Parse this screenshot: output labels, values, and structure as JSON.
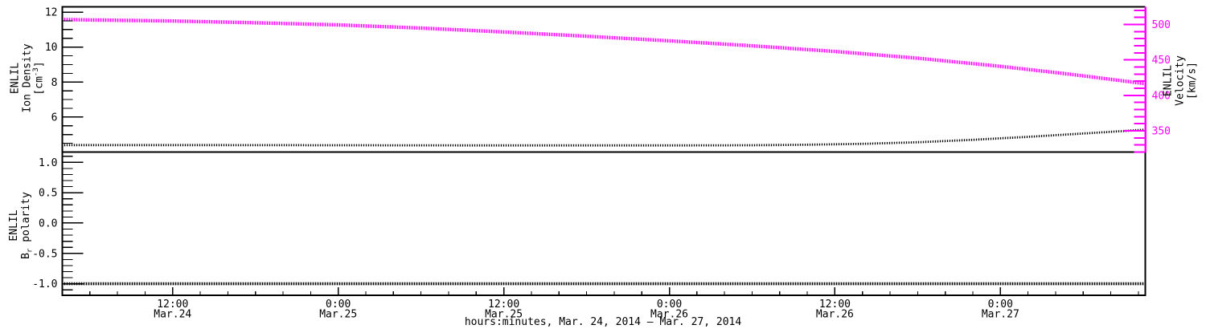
{
  "figure": {
    "background": "#ffffff",
    "frame_color": "#000000",
    "accent_color": "#ff00ff"
  },
  "x_axis": {
    "title": "hours:minutes, Mar. 24, 2014 – Mar. 27, 2014",
    "range_hours": [
      4,
      82.5
    ],
    "minor_step_hours": 2,
    "major_step_hours": 12,
    "major_ticks": [
      {
        "hours": 12,
        "time": "12:00",
        "date": "Mar.24"
      },
      {
        "hours": 24,
        "time": "0:00",
        "date": "Mar.25"
      },
      {
        "hours": 36,
        "time": "12:00",
        "date": "Mar.25"
      },
      {
        "hours": 48,
        "time": "0:00",
        "date": "Mar.26"
      },
      {
        "hours": 60,
        "time": "12:00",
        "date": "Mar.26"
      },
      {
        "hours": 72,
        "time": "0:00",
        "date": "Mar.27"
      }
    ]
  },
  "chart_data": [
    {
      "type": "line",
      "panel": "top",
      "name": "enlil-ion-density-and-velocity",
      "grid": false,
      "y_left": {
        "title_lines": [
          "ENLIL",
          "Ion Density"
        ],
        "unit_pre": "[cm",
        "unit_sup": "-3",
        "unit_post": "]",
        "range": [
          4.0,
          12.3
        ],
        "major_ticks": [
          {
            "label": "12",
            "value": 12
          },
          {
            "label": "10",
            "value": 10
          },
          {
            "label": "8",
            "value": 8
          },
          {
            "label": "6",
            "value": 6
          }
        ],
        "minor_step": 0.5,
        "color": "#000000"
      },
      "y_right": {
        "title_lines": [
          "ENLIL",
          "Velocity"
        ],
        "unit": "[km/s]",
        "range": [
          320,
          525
        ],
        "major_ticks": [
          {
            "label": "500",
            "value": 500
          },
          {
            "label": "450",
            "value": 450
          },
          {
            "label": "400",
            "value": 400
          },
          {
            "label": "350",
            "value": 350
          }
        ],
        "minor_step": 10,
        "color": "#ff00ff"
      },
      "series": [
        {
          "name": "ion-density",
          "axis": "left",
          "color": "#000000",
          "style": "dense-dashes",
          "x_hours": [
            4,
            12,
            24,
            36,
            48,
            54,
            58,
            62,
            66,
            70,
            74,
            78,
            82.5
          ],
          "values": [
            4.4,
            4.4,
            4.39,
            4.38,
            4.38,
            4.39,
            4.42,
            4.47,
            4.56,
            4.7,
            4.87,
            5.06,
            5.28
          ]
        },
        {
          "name": "velocity",
          "axis": "right",
          "color": "#ff00ff",
          "style": "dense-ticks",
          "x_hours": [
            4,
            8,
            12,
            18,
            24,
            30,
            36,
            42,
            48,
            54,
            60,
            66,
            72,
            77,
            82.5
          ],
          "values": [
            507,
            506,
            505,
            502.5,
            499.5,
            495,
            489.5,
            483.5,
            477,
            470,
            462,
            452.5,
            441,
            430,
            416.5
          ]
        }
      ]
    },
    {
      "type": "line",
      "panel": "bottom",
      "name": "enlil-br-polarity",
      "grid": false,
      "y_left": {
        "title_lines": [
          "ENLIL"
        ],
        "title_pre": "B",
        "title_sub": "r",
        "title_post": " polarity",
        "range": [
          -1.19,
          1.17
        ],
        "major_ticks": [
          {
            "label": "1.0",
            "value": 1.0
          },
          {
            "label": "0.5",
            "value": 0.5
          },
          {
            "label": "0.0",
            "value": 0.0
          },
          {
            "label": "-0.5",
            "value": -0.5
          },
          {
            "label": "-1.0",
            "value": -1.0
          }
        ],
        "minor_step": 0.1,
        "color": "#000000"
      },
      "series": [
        {
          "name": "br-polarity",
          "axis": "left",
          "color": "#000000",
          "style": "dense-dashes",
          "x_hours": [
            4,
            82.5
          ],
          "values": [
            -1,
            -1
          ]
        }
      ]
    }
  ]
}
